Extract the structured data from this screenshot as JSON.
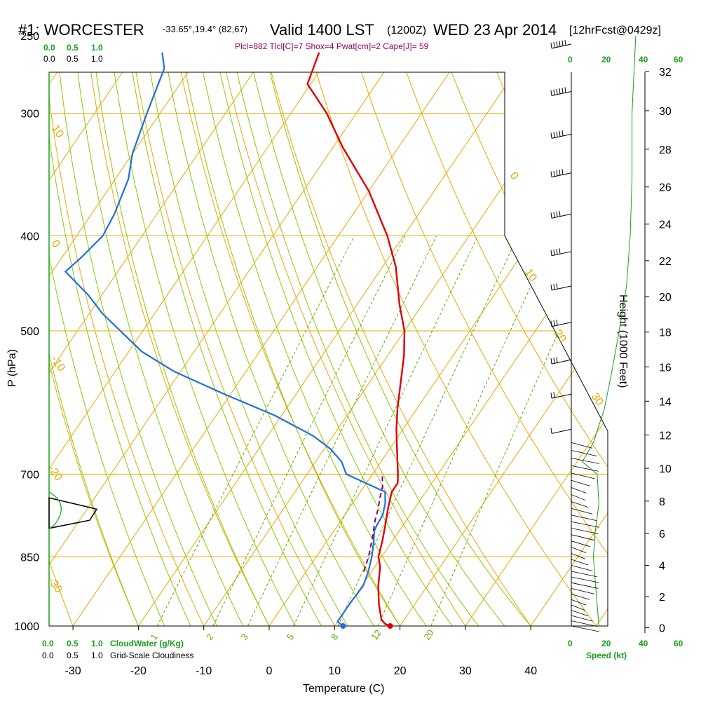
{
  "header": {
    "title_left": "#1: WORCESTER",
    "coords": "-33.65°,19.4° (82,67)",
    "valid": "Valid 1400 LST",
    "utc": "(1200Z)",
    "date": "WED 23 Apr 2014",
    "forecast": "[12hrFcst@0429z]",
    "indices": "Plcl=882 Tlcl[C]=7 Shox=4 Pwat[cm]=2 Cape[J]= 59"
  },
  "left_scales": {
    "top_green": [
      "0.0",
      "0.5",
      "1.0"
    ],
    "top_black": [
      "0.0",
      "0.5",
      "1.0"
    ],
    "bottom_green": [
      "0.0",
      "0.5",
      "1.0"
    ],
    "bottom_black": [
      "0.0",
      "0.5",
      "1.0"
    ],
    "cloudwater_label": "CloudWater (g/Kg)",
    "cloudiness_label": "Grid-Scale Cloudiness"
  },
  "speed_scale": {
    "top_labels": [
      "0",
      "20",
      "40",
      "60"
    ],
    "bottom_labels": [
      "0",
      "20",
      "40",
      "60"
    ],
    "label": "Speed (kt)"
  },
  "colors": {
    "isotherm": "#e8a800",
    "mixing_ratio": "#66aa00",
    "adiabat": "#8fc800",
    "temperature": "#e00000",
    "dewpoint": "#1f6fe0",
    "parcel": "#7a0080",
    "cloud": "#1aa01a",
    "wind_speed": "#1aa01a"
  },
  "chart_data": {
    "type": "line",
    "xlabel": "Temperature (C)",
    "ylabel": "P (hPa)",
    "y2label": "Height (1000 Feet)",
    "x_ticks": [
      -30,
      -20,
      -10,
      0,
      10,
      20,
      30,
      40
    ],
    "pressure_ticks": [
      250,
      300,
      400,
      500,
      700,
      850,
      1000
    ],
    "height_ticks": [
      0,
      2,
      4,
      6,
      8,
      10,
      12,
      14,
      16,
      18,
      20,
      22,
      24,
      26,
      28,
      30,
      32
    ],
    "xlim": [
      -33,
      47
    ],
    "ylim": [
      1000,
      250
    ],
    "isotherm_labels": [
      {
        "label": "10",
        "t": 10,
        "p": 295
      },
      {
        "label": "0",
        "t": 0,
        "p": 395
      },
      {
        "label": "-10",
        "t": -10,
        "p": 520
      },
      {
        "label": "-20",
        "t": -20,
        "p": 695
      },
      {
        "label": "-30",
        "t": -30,
        "p": 885
      },
      {
        "label": "0",
        "t": 0,
        "p": 340
      },
      {
        "label": "10",
        "t": 10,
        "p": 420
      },
      {
        "label": "20",
        "t": 20,
        "p": 480
      },
      {
        "label": "30",
        "t": 30,
        "p": 585
      }
    ],
    "mixing_ratio_labels": [
      "1",
      "2",
      "3",
      "5",
      "8",
      "12",
      "20"
    ],
    "series": [
      {
        "name": "Temperature",
        "points": [
          [
            18.5,
            1000
          ],
          [
            17.5,
            995
          ],
          [
            16.5,
            985
          ],
          [
            14.5,
            950
          ],
          [
            12.5,
            910
          ],
          [
            10.8,
            870
          ],
          [
            9.5,
            850
          ],
          [
            8.5,
            820
          ],
          [
            7.3,
            790
          ],
          [
            6.0,
            760
          ],
          [
            4.8,
            730
          ],
          [
            4.8,
            715
          ],
          [
            3.9,
            700
          ],
          [
            1.5,
            665
          ],
          [
            -1.0,
            630
          ],
          [
            -3.0,
            600
          ],
          [
            -5.5,
            560
          ],
          [
            -7.5,
            530
          ],
          [
            -10.0,
            500
          ],
          [
            -13.5,
            470
          ],
          [
            -18.0,
            430
          ],
          [
            -22.5,
            400
          ],
          [
            -30.0,
            360
          ],
          [
            -38.5,
            325
          ],
          [
            -44.5,
            300
          ],
          [
            -50.5,
            280
          ],
          [
            -52.0,
            260
          ]
        ]
      },
      {
        "name": "Dewpoint",
        "points": [
          [
            11.3,
            1000
          ],
          [
            10.0,
            990
          ],
          [
            10.0,
            950
          ],
          [
            10.2,
            910
          ],
          [
            9.5,
            880
          ],
          [
            8.5,
            850
          ],
          [
            7.2,
            820
          ],
          [
            6.2,
            800
          ],
          [
            6.0,
            790
          ],
          [
            5.8,
            770
          ],
          [
            5.0,
            750
          ],
          [
            3.8,
            730
          ],
          [
            -4.0,
            700
          ],
          [
            -6.0,
            680
          ],
          [
            -9.0,
            660
          ],
          [
            -13.0,
            640
          ],
          [
            -21.0,
            610
          ],
          [
            -31.0,
            580
          ],
          [
            -41.0,
            550
          ],
          [
            -48.0,
            525
          ],
          [
            -58.0,
            480
          ],
          [
            -62.0,
            460
          ],
          [
            -68.0,
            435
          ],
          [
            -67.0,
            420
          ],
          [
            -66.0,
            400
          ],
          [
            -66.5,
            380
          ],
          [
            -68.0,
            350
          ],
          [
            -70.0,
            330
          ],
          [
            -72.0,
            300
          ],
          [
            -74.0,
            270
          ],
          [
            -76.0,
            260
          ]
        ]
      },
      {
        "name": "Parcel",
        "points": [
          [
            8.8,
            880
          ],
          [
            8.0,
            850
          ],
          [
            6.5,
            810
          ],
          [
            5.2,
            780
          ],
          [
            4.5,
            760
          ],
          [
            3.6,
            740
          ],
          [
            2.8,
            720
          ],
          [
            1.5,
            700
          ]
        ]
      }
    ]
  },
  "wind_barbs": {
    "upper": [
      {
        "p": 255,
        "dir": 270,
        "kt": 55
      },
      {
        "p": 285,
        "dir": 270,
        "kt": 55
      },
      {
        "p": 315,
        "dir": 270,
        "kt": 50
      },
      {
        "p": 345,
        "dir": 270,
        "kt": 45
      },
      {
        "p": 380,
        "dir": 270,
        "kt": 40
      },
      {
        "p": 415,
        "dir": 270,
        "kt": 35
      },
      {
        "p": 450,
        "dir": 270,
        "kt": 30
      },
      {
        "p": 490,
        "dir": 270,
        "kt": 25
      },
      {
        "p": 535,
        "dir": 270,
        "kt": 25
      },
      {
        "p": 580,
        "dir": 270,
        "kt": 20
      },
      {
        "p": 630,
        "dir": 270,
        "kt": 10
      }
    ],
    "lower_count": 30
  },
  "wind_speed_profile": [
    [
      35,
      250
    ],
    [
      33,
      300
    ],
    [
      33,
      350
    ],
    [
      32,
      400
    ],
    [
      30,
      450
    ],
    [
      26,
      500
    ],
    [
      22,
      550
    ],
    [
      18,
      600
    ],
    [
      12,
      650
    ],
    [
      6,
      680
    ],
    [
      14,
      700
    ],
    [
      15,
      750
    ],
    [
      13,
      800
    ],
    [
      12,
      850
    ],
    [
      13,
      900
    ],
    [
      14,
      950
    ],
    [
      15,
      1000
    ]
  ]
}
